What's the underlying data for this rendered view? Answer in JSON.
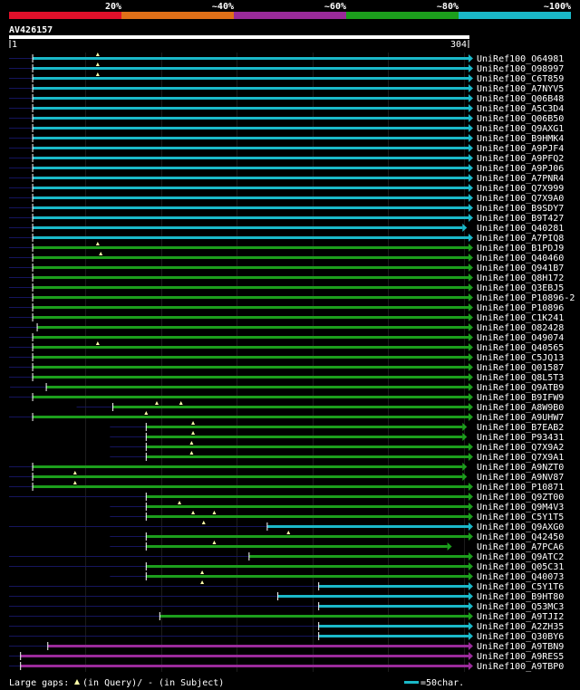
{
  "chart_data": {
    "type": "alignment",
    "query_id": "AV426157",
    "query_start": "1",
    "query_end": "304",
    "query_length": 304,
    "identity_legend": [
      {
        "label": "20%",
        "color": "#e0102a"
      },
      {
        "label": "~40%",
        "color": "#e07018"
      },
      {
        "label": "~60%",
        "color": "#9a2a9a"
      },
      {
        "label": "~80%",
        "color": "#1c9e1c"
      },
      {
        "label": "~100%",
        "color": "#1ab8c8"
      }
    ],
    "footer": {
      "gaps_label": "Large gaps:",
      "query_gap_text": "(in Query)/",
      "subject_gap_text": "- (in Subject)",
      "scale_text": "=50char."
    },
    "hits": [
      {
        "id": "UniRef100_O64981",
        "color": "cyan",
        "start": 16,
        "end": 304,
        "lead": 0,
        "tri": [
          59
        ]
      },
      {
        "id": "UniRef100_O98997",
        "color": "cyan",
        "start": 16,
        "end": 304,
        "lead": 0,
        "tri": [
          59
        ]
      },
      {
        "id": "UniRef100_C6T859",
        "color": "cyan",
        "start": 16,
        "end": 304,
        "lead": 0,
        "tri": [
          59
        ]
      },
      {
        "id": "UniRef100_A7NYV5",
        "color": "cyan",
        "start": 16,
        "end": 304,
        "lead": 0,
        "tri": []
      },
      {
        "id": "UniRef100_Q06B48",
        "color": "cyan",
        "start": 16,
        "end": 304,
        "lead": 0,
        "tri": []
      },
      {
        "id": "UniRef100_A5C3D4",
        "color": "cyan",
        "start": 16,
        "end": 304,
        "lead": 0,
        "tri": []
      },
      {
        "id": "UniRef100_Q06B50",
        "color": "cyan",
        "start": 16,
        "end": 304,
        "lead": 0,
        "tri": []
      },
      {
        "id": "UniRef100_Q9AXG1",
        "color": "cyan",
        "start": 16,
        "end": 304,
        "lead": 0,
        "tri": []
      },
      {
        "id": "UniRef100_B9HMK4",
        "color": "cyan",
        "start": 16,
        "end": 304,
        "lead": 0,
        "tri": []
      },
      {
        "id": "UniRef100_A9PJF4",
        "color": "cyan",
        "start": 16,
        "end": 304,
        "lead": 0,
        "tri": []
      },
      {
        "id": "UniRef100_A9PFQ2",
        "color": "cyan",
        "start": 16,
        "end": 304,
        "lead": 0,
        "tri": []
      },
      {
        "id": "UniRef100_A9PJ06",
        "color": "cyan",
        "start": 16,
        "end": 304,
        "lead": 0,
        "tri": []
      },
      {
        "id": "UniRef100_A7PNR4",
        "color": "cyan",
        "start": 16,
        "end": 304,
        "lead": 0,
        "tri": []
      },
      {
        "id": "UniRef100_Q7X999",
        "color": "cyan",
        "start": 16,
        "end": 304,
        "lead": 0,
        "tri": []
      },
      {
        "id": "UniRef100_Q7X9A0",
        "color": "cyan",
        "start": 16,
        "end": 304,
        "lead": 0,
        "tri": []
      },
      {
        "id": "UniRef100_B9SDY7",
        "color": "cyan",
        "start": 16,
        "end": 304,
        "lead": 0,
        "tri": []
      },
      {
        "id": "UniRef100_B9T427",
        "color": "cyan",
        "start": 16,
        "end": 304,
        "lead": 0,
        "tri": []
      },
      {
        "id": "UniRef100_Q40281",
        "color": "cyan",
        "start": 16,
        "end": 300,
        "lead": 0,
        "tri": []
      },
      {
        "id": "UniRef100_A7PIQ8",
        "color": "cyan",
        "start": 16,
        "end": 304,
        "lead": 0,
        "tri": []
      },
      {
        "id": "UniRef100_B1PDJ9",
        "color": "green",
        "start": 16,
        "end": 304,
        "lead": 0,
        "tri": [
          59
        ]
      },
      {
        "id": "UniRef100_Q40460",
        "color": "green",
        "start": 16,
        "end": 304,
        "lead": 0,
        "tri": [
          61
        ]
      },
      {
        "id": "UniRef100_Q941B7",
        "color": "green",
        "start": 16,
        "end": 304,
        "lead": 0,
        "tri": []
      },
      {
        "id": "UniRef100_Q8H172",
        "color": "green",
        "start": 16,
        "end": 304,
        "lead": 0,
        "tri": []
      },
      {
        "id": "UniRef100_Q3EBJ5",
        "color": "green",
        "start": 16,
        "end": 304,
        "lead": 0,
        "tri": []
      },
      {
        "id": "UniRef100_P10896-2",
        "color": "green",
        "start": 16,
        "end": 304,
        "lead": 0,
        "tri": []
      },
      {
        "id": "UniRef100_P10896",
        "color": "green",
        "start": 16,
        "end": 304,
        "lead": 0,
        "tri": []
      },
      {
        "id": "UniRef100_C1K241",
        "color": "green",
        "start": 16,
        "end": 304,
        "lead": 0,
        "tri": []
      },
      {
        "id": "UniRef100_O82428",
        "color": "green",
        "start": 19,
        "end": 304,
        "lead": 0,
        "tri": []
      },
      {
        "id": "UniRef100_O49074",
        "color": "green",
        "start": 16,
        "end": 304,
        "lead": 0,
        "tri": []
      },
      {
        "id": "UniRef100_Q40565",
        "color": "green",
        "start": 16,
        "end": 304,
        "lead": 0,
        "tri": [
          59
        ]
      },
      {
        "id": "UniRef100_C5JQ13",
        "color": "green",
        "start": 16,
        "end": 304,
        "lead": 0,
        "tri": []
      },
      {
        "id": "UniRef100_Q01587",
        "color": "green",
        "start": 16,
        "end": 304,
        "lead": 0,
        "tri": []
      },
      {
        "id": "UniRef100_Q8L5T3",
        "color": "green",
        "start": 16,
        "end": 304,
        "lead": 0,
        "tri": []
      },
      {
        "id": "UniRef100_Q9ATB9",
        "color": "green",
        "start": 25,
        "end": 304,
        "lead": 0,
        "tri": []
      },
      {
        "id": "UniRef100_B9IFW9",
        "color": "green",
        "start": 16,
        "end": 304,
        "lead": 0,
        "tri": []
      },
      {
        "id": "UniRef100_A8W9B0",
        "color": "green",
        "start": 69,
        "end": 304,
        "lead": 0,
        "tri": [
          98,
          114
        ]
      },
      {
        "id": "UniRef100_A9UHW7",
        "color": "green",
        "start": 16,
        "end": 304,
        "lead": 0,
        "tri": [
          91
        ]
      },
      {
        "id": "UniRef100_B7EAB2",
        "color": "green",
        "start": 91,
        "end": 300,
        "lead": 0,
        "tri": [
          122
        ]
      },
      {
        "id": "UniRef100_P93431",
        "color": "green",
        "start": 91,
        "end": 300,
        "lead": 0,
        "tri": [
          122
        ]
      },
      {
        "id": "UniRef100_Q7X9A2",
        "color": "green",
        "start": 91,
        "end": 304,
        "lead": 0,
        "tri": [
          121
        ]
      },
      {
        "id": "UniRef100_Q7X9A1",
        "color": "green",
        "start": 91,
        "end": 304,
        "lead": 0,
        "tri": [
          121
        ]
      },
      {
        "id": "UniRef100_A9NZT0",
        "color": "green",
        "start": 16,
        "end": 300,
        "lead": 0,
        "tri": []
      },
      {
        "id": "UniRef100_A9NV87",
        "color": "green",
        "start": 16,
        "end": 300,
        "lead": 0,
        "tri": [
          44
        ]
      },
      {
        "id": "UniRef100_P10871",
        "color": "green",
        "start": 16,
        "end": 304,
        "lead": 0,
        "tri": [
          44
        ]
      },
      {
        "id": "UniRef100_Q9ZT00",
        "color": "green",
        "start": 91,
        "end": 304,
        "lead": 1,
        "tri": []
      },
      {
        "id": "UniRef100_Q9M4V3",
        "color": "green",
        "start": 91,
        "end": 304,
        "lead": 0,
        "tri": [
          113
        ]
      },
      {
        "id": "UniRef100_C5Y1T5",
        "color": "green",
        "start": 91,
        "end": 304,
        "lead": 0,
        "tri": [
          122,
          136
        ]
      },
      {
        "id": "UniRef100_Q9AXG0",
        "color": "cyan",
        "start": 171,
        "end": 304,
        "lead": 1,
        "tri": [
          129
        ]
      },
      {
        "id": "UniRef100_Q42450",
        "color": "green",
        "start": 91,
        "end": 304,
        "lead": 0,
        "tri": [
          185
        ]
      },
      {
        "id": "UniRef100_A7PCA6",
        "color": "green",
        "start": 91,
        "end": 290,
        "lead": 0,
        "tri": [
          136
        ]
      },
      {
        "id": "UniRef100_Q9ATC2",
        "color": "green",
        "start": 159,
        "end": 304,
        "lead": 1,
        "tri": []
      },
      {
        "id": "UniRef100_Q05C31",
        "color": "green",
        "start": 91,
        "end": 304,
        "lead": 1,
        "tri": []
      },
      {
        "id": "UniRef100_Q40073",
        "color": "green",
        "start": 91,
        "end": 304,
        "lead": 0,
        "tri": [
          128
        ]
      },
      {
        "id": "UniRef100_C5Y1T6",
        "color": "cyan",
        "start": 205,
        "end": 304,
        "lead": 1,
        "tri": [
          128
        ]
      },
      {
        "id": "UniRef100_B9HT80",
        "color": "cyan",
        "start": 178,
        "end": 304,
        "lead": 1,
        "tri": []
      },
      {
        "id": "UniRef100_Q53MC3",
        "color": "cyan",
        "start": 205,
        "end": 304,
        "lead": 1,
        "tri": []
      },
      {
        "id": "UniRef100_A9TJI2",
        "color": "green",
        "start": 100,
        "end": 304,
        "lead": 1,
        "tri": []
      },
      {
        "id": "UniRef100_A2ZH35",
        "color": "cyan",
        "start": 205,
        "end": 304,
        "lead": 1,
        "tri": []
      },
      {
        "id": "UniRef100_Q30BY6",
        "color": "cyan",
        "start": 205,
        "end": 304,
        "lead": 1,
        "tri": []
      },
      {
        "id": "UniRef100_A9TBN9",
        "color": "purple",
        "start": 26,
        "end": 304,
        "lead": 1,
        "tri": []
      },
      {
        "id": "UniRef100_A9RES5",
        "color": "purple",
        "start": 8,
        "end": 304,
        "lead": 1,
        "tri": []
      },
      {
        "id": "UniRef100_A9TBP0",
        "color": "purple",
        "start": 8,
        "end": 304,
        "lead": 1,
        "tri": []
      }
    ]
  }
}
